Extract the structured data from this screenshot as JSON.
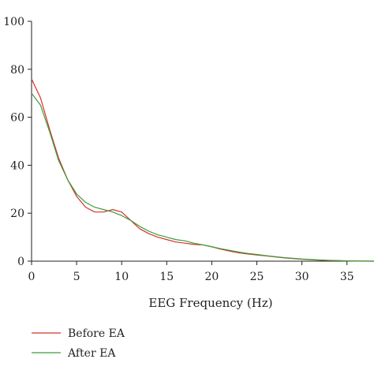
{
  "chart_data": {
    "type": "line",
    "title": "",
    "xlabel": "EEG Frequency (Hz)",
    "ylabel": "",
    "xlim": [
      0,
      38
    ],
    "ylim": [
      0,
      100
    ],
    "x_ticks": [
      0,
      5,
      10,
      15,
      20,
      25,
      30,
      35
    ],
    "y_ticks": [
      0,
      20,
      40,
      60,
      80,
      100
    ],
    "grid": false,
    "legend_position": "bottom-left",
    "series": [
      {
        "name": "Before EA",
        "color": "#d7322c",
        "points": [
          [
            0,
            76
          ],
          [
            1,
            68
          ],
          [
            2,
            55
          ],
          [
            3,
            43
          ],
          [
            4,
            34
          ],
          [
            5,
            27
          ],
          [
            6,
            22.5
          ],
          [
            7,
            20.5
          ],
          [
            8,
            20.5
          ],
          [
            9,
            21.5
          ],
          [
            10,
            20.5
          ],
          [
            11,
            17
          ],
          [
            12,
            13.5
          ],
          [
            13,
            11.5
          ],
          [
            14,
            10
          ],
          [
            15,
            9
          ],
          [
            16,
            8
          ],
          [
            17,
            7.5
          ],
          [
            18,
            7
          ],
          [
            19,
            6.8
          ],
          [
            20,
            6
          ],
          [
            21,
            5
          ],
          [
            22,
            4.2
          ],
          [
            23,
            3.5
          ],
          [
            24,
            3
          ],
          [
            25,
            2.6
          ],
          [
            26,
            2.2
          ],
          [
            27,
            1.8
          ],
          [
            28,
            1.4
          ],
          [
            29,
            1.1
          ],
          [
            30,
            0.8
          ],
          [
            31,
            0.6
          ],
          [
            32,
            0.4
          ],
          [
            33,
            0.3
          ],
          [
            34,
            0.2
          ],
          [
            35,
            0.1
          ],
          [
            36,
            0.05
          ],
          [
            38,
            0
          ]
        ]
      },
      {
        "name": "After EA",
        "color": "#3c9a3c",
        "points": [
          [
            0,
            70
          ],
          [
            1,
            65
          ],
          [
            2,
            54
          ],
          [
            3,
            42
          ],
          [
            4,
            34
          ],
          [
            5,
            28
          ],
          [
            6,
            24.5
          ],
          [
            7,
            22.5
          ],
          [
            8,
            21.5
          ],
          [
            9,
            20.5
          ],
          [
            10,
            19
          ],
          [
            11,
            17
          ],
          [
            12,
            14.5
          ],
          [
            13,
            12.5
          ],
          [
            14,
            11
          ],
          [
            15,
            10
          ],
          [
            16,
            9
          ],
          [
            17,
            8.5
          ],
          [
            18,
            7.5
          ],
          [
            19,
            6.8
          ],
          [
            20,
            6
          ],
          [
            21,
            5.2
          ],
          [
            22,
            4.5
          ],
          [
            23,
            3.8
          ],
          [
            24,
            3.2
          ],
          [
            25,
            2.8
          ],
          [
            26,
            2.3
          ],
          [
            27,
            1.9
          ],
          [
            28,
            1.5
          ],
          [
            29,
            1.2
          ],
          [
            30,
            0.9
          ],
          [
            31,
            0.7
          ],
          [
            32,
            0.5
          ],
          [
            33,
            0.35
          ],
          [
            34,
            0.25
          ],
          [
            35,
            0.15
          ],
          [
            36,
            0.08
          ],
          [
            38,
            0
          ]
        ]
      }
    ]
  }
}
